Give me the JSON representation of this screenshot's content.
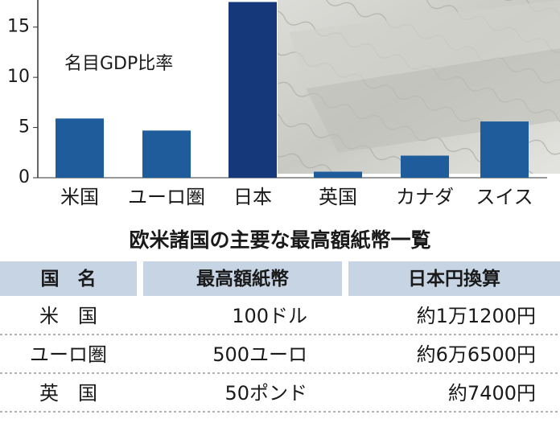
{
  "chart_data": {
    "type": "bar",
    "annotation": "名目GDP比率",
    "categories": [
      "米国",
      "ユーロ圏",
      "日本",
      "英国",
      "カナダ",
      "スイス"
    ],
    "values": [
      5.9,
      4.7,
      17.5,
      0.6,
      2.2,
      5.6
    ],
    "colors": [
      "#1f5c9c",
      "#1f5c9c",
      "#14387a",
      "#1f5c9c",
      "#1f5c9c",
      "#1f5c9c"
    ],
    "ylim": [
      0,
      17.7
    ],
    "yticks": [
      0,
      5,
      10,
      15
    ]
  },
  "table": {
    "title": "欧米諸国の主要な最高額紙幣一覧",
    "header": [
      "国　名",
      "最高額紙幣",
      "日本円換算"
    ],
    "rows": [
      [
        "米　国",
        "100ドル",
        "約1万1200円"
      ],
      [
        "ユーロ圏",
        "500ユーロ",
        "約6万6500円"
      ],
      [
        "英　国",
        "50ポンド",
        "約7400円"
      ]
    ]
  }
}
